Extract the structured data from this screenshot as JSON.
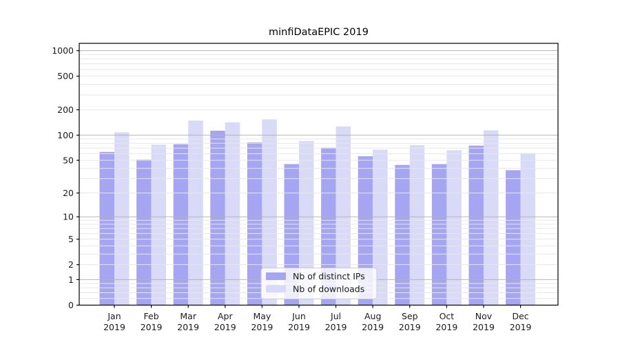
{
  "chart_data": {
    "type": "bar",
    "title": "minfiDataEPIC 2019",
    "categories": [
      "Jan",
      "Feb",
      "Mar",
      "Apr",
      "May",
      "Jun",
      "Jul",
      "Aug",
      "Sep",
      "Oct",
      "Nov",
      "Dec"
    ],
    "category_year": "2019",
    "series": [
      {
        "name": "Nb of distinct IPs",
        "color": "#a5a5f1",
        "values": [
          63,
          51,
          78,
          113,
          82,
          45,
          71,
          56,
          44,
          45,
          75,
          38
        ]
      },
      {
        "name": "Nb of downloads",
        "color": "#d9d9f8",
        "values": [
          108,
          77,
          149,
          142,
          154,
          85,
          127,
          67,
          76,
          66,
          114,
          61
        ]
      }
    ],
    "yscale": "log1p",
    "yticks": [
      0,
      1,
      2,
      5,
      10,
      20,
      50,
      100,
      200,
      500,
      1000
    ],
    "ylim": [
      0,
      1220
    ],
    "xlabel": "",
    "ylabel": "",
    "grid": true,
    "legend_position": "lower center",
    "colors": {
      "major_gridline": "#b4b4b4",
      "minor_gridline": "#e7e7e7",
      "spine": "#000000",
      "text": "#1a1a1a",
      "legend_border": "#cccccc",
      "legend_background": "rgba(255,255,255,0.8)"
    }
  }
}
